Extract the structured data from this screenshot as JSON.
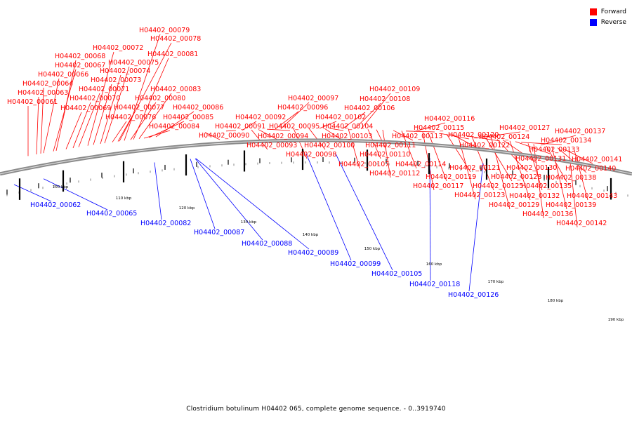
{
  "legend": [
    {
      "label": "Forward",
      "color": "#ff0000"
    },
    {
      "label": "Reverse",
      "color": "#0000ff"
    }
  ],
  "caption": "Clostridium botulinum H04402 065, complete genome sequence. - 0..3919740",
  "colors": {
    "forward": "#ff0000",
    "reverse": "#0000ff",
    "backbone": "#888888",
    "tick": "#000000"
  },
  "ticks": [
    "100 kbp",
    "110 kbp",
    "120 kbp",
    "130 kbp",
    "140 kbp",
    "150 kbp",
    "160 kbp",
    "170 kbp",
    "180 kbp",
    "190 kbp"
  ],
  "forward_labels": [
    "H04402_00061",
    "H04402_00063",
    "H04402_00064",
    "H04402_00066",
    "H04402_00067",
    "H04402_00068",
    "H04402_00069",
    "H04402_00070",
    "H04402_00071",
    "H04402_00072",
    "H04402_00073",
    "H04402_00074",
    "H04402_00075",
    "H04402_00076",
    "H04402_00077",
    "H04402_00078",
    "H04402_00079",
    "H04402_00080",
    "H04402_00081",
    "H04402_00083",
    "H04402_00084",
    "H04402_00085",
    "H04402_00086",
    "H04402_00090",
    "H04402_00091",
    "H04402_00092",
    "H04402_00093",
    "H04402_00094",
    "H04402_00095",
    "H04402_00096",
    "H04402_00097",
    "H04402_00098",
    "H04402_00100",
    "H04402_00102",
    "H04402_00103",
    "H04402_00104",
    "H04402_00106",
    "H04402_00107",
    "H04402_00108",
    "H04402_00109",
    "H04402_00110",
    "H04402_00111",
    "H04402_00112",
    "H04402_00113",
    "H04402_00114",
    "H04402_00115",
    "H04402_00116",
    "H04402_00117",
    "H04402_00119",
    "H04402_00120",
    "H04402_00121",
    "H04402_00122",
    "H04402_00123",
    "H04402_00124",
    "H04402_00125",
    "H04402_00127",
    "H04402_00128",
    "H04402_00129",
    "H04402_00130",
    "H04402_00131",
    "H04402_00132",
    "H04402_00133",
    "H04402_00134",
    "H04402_00135",
    "H04402_00136",
    "H04402_00137",
    "H04402_00138",
    "H04402_00139",
    "H04402_00140",
    "H04402_00141",
    "H04402_00142",
    "H04402_00143"
  ],
  "reverse_labels": [
    "H04402_00062",
    "H04402_00065",
    "H04402_00082",
    "H04402_00087",
    "H04402_00088",
    "H04402_00089",
    "H04402_00099",
    "H04402_00105",
    "H04402_00118",
    "H04402_00126"
  ]
}
